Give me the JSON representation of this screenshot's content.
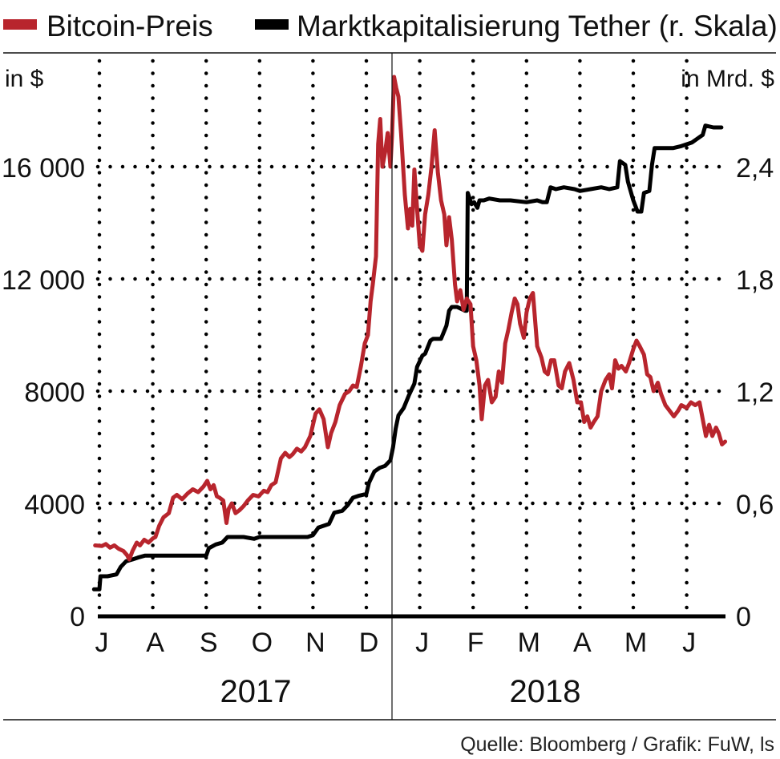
{
  "legend": [
    {
      "label": "Bitcoin-Preis",
      "color": "#b8252d"
    },
    {
      "label": "Marktkapitalisierung Tether (r. Skala)",
      "color": "#000000"
    }
  ],
  "left_unit": "in $",
  "right_unit": "in Mrd. $",
  "source": "Quelle: Bloomberg / Grafik: FuW, ls",
  "chart_data": {
    "type": "line",
    "title": "",
    "x_unit": "months since 1 Jul 2017",
    "xlim": [
      0,
      12
    ],
    "month_ticks": [
      {
        "label": "J",
        "x": 0
      },
      {
        "label": "A",
        "x": 1
      },
      {
        "label": "S",
        "x": 2
      },
      {
        "label": "O",
        "x": 3
      },
      {
        "label": "N",
        "x": 4
      },
      {
        "label": "D",
        "x": 5
      },
      {
        "label": "J",
        "x": 6
      },
      {
        "label": "F",
        "x": 7
      },
      {
        "label": "M",
        "x": 8
      },
      {
        "label": "A",
        "x": 9
      },
      {
        "label": "M",
        "x": 10
      },
      {
        "label": "J",
        "x": 11
      }
    ],
    "years": [
      {
        "label": "2017",
        "from": 0,
        "to": 5.5
      },
      {
        "label": "2018",
        "from": 5.5,
        "to": 12
      }
    ],
    "year_divider": 5.5,
    "left_axis": {
      "ylim": [
        0,
        20000
      ],
      "ticks": [
        0,
        4000,
        8000,
        12000,
        16000
      ],
      "tick_labels": [
        "0",
        "4000",
        "8000",
        "12 000",
        "16 000"
      ]
    },
    "right_axis": {
      "ylim": [
        0,
        3.0
      ],
      "ticks": [
        0,
        0.6,
        1.2,
        1.8,
        2.4
      ],
      "tick_labels": [
        "0",
        "0,6",
        "1,2",
        "1,8",
        "2,4"
      ]
    },
    "grid": true,
    "legend_position": "top",
    "series": [
      {
        "name": "Bitcoin-Preis",
        "axis": "left",
        "color": "#b8252d",
        "points": [
          [
            -0.08,
            2500
          ],
          [
            0.05,
            2480
          ],
          [
            0.12,
            2550
          ],
          [
            0.2,
            2420
          ],
          [
            0.28,
            2500
          ],
          [
            0.36,
            2380
          ],
          [
            0.45,
            2300
          ],
          [
            0.52,
            2150
          ],
          [
            0.56,
            2000
          ],
          [
            0.62,
            2300
          ],
          [
            0.7,
            2600
          ],
          [
            0.76,
            2500
          ],
          [
            0.84,
            2700
          ],
          [
            0.92,
            2600
          ],
          [
            1.0,
            2750
          ],
          [
            1.05,
            2800
          ],
          [
            1.12,
            3200
          ],
          [
            1.2,
            3500
          ],
          [
            1.3,
            3650
          ],
          [
            1.38,
            4200
          ],
          [
            1.45,
            4300
          ],
          [
            1.55,
            4150
          ],
          [
            1.65,
            4350
          ],
          [
            1.75,
            4500
          ],
          [
            1.85,
            4400
          ],
          [
            1.95,
            4600
          ],
          [
            2.02,
            4800
          ],
          [
            2.08,
            4500
          ],
          [
            2.14,
            4650
          ],
          [
            2.2,
            4250
          ],
          [
            2.25,
            4200
          ],
          [
            2.32,
            4100
          ],
          [
            2.38,
            3300
          ],
          [
            2.42,
            3800
          ],
          [
            2.48,
            4000
          ],
          [
            2.55,
            3650
          ],
          [
            2.62,
            3750
          ],
          [
            2.7,
            3900
          ],
          [
            2.78,
            4100
          ],
          [
            2.88,
            4300
          ],
          [
            2.98,
            4250
          ],
          [
            3.08,
            4450
          ],
          [
            3.15,
            4400
          ],
          [
            3.22,
            4650
          ],
          [
            3.3,
            4750
          ],
          [
            3.4,
            5600
          ],
          [
            3.48,
            5800
          ],
          [
            3.56,
            5650
          ],
          [
            3.62,
            5750
          ],
          [
            3.7,
            5950
          ],
          [
            3.78,
            5850
          ],
          [
            3.85,
            6000
          ],
          [
            3.95,
            6400
          ],
          [
            4.05,
            7200
          ],
          [
            4.12,
            7350
          ],
          [
            4.2,
            7000
          ],
          [
            4.28,
            6000
          ],
          [
            4.34,
            6500
          ],
          [
            4.42,
            6900
          ],
          [
            4.5,
            7500
          ],
          [
            4.6,
            7900
          ],
          [
            4.68,
            8000
          ],
          [
            4.75,
            8200
          ],
          [
            4.82,
            8150
          ],
          [
            4.9,
            8900
          ],
          [
            4.97,
            9700
          ],
          [
            5.03,
            10000
          ],
          [
            5.08,
            11200
          ],
          [
            5.12,
            11800
          ],
          [
            5.18,
            12800
          ],
          [
            5.22,
            16800
          ],
          [
            5.26,
            17700
          ],
          [
            5.3,
            16000
          ],
          [
            5.35,
            16500
          ],
          [
            5.4,
            17200
          ],
          [
            5.45,
            16000
          ],
          [
            5.48,
            17100
          ],
          [
            5.52,
            19200
          ],
          [
            5.56,
            18800
          ],
          [
            5.6,
            18500
          ],
          [
            5.65,
            17200
          ],
          [
            5.72,
            15000
          ],
          [
            5.78,
            13800
          ],
          [
            5.82,
            14500
          ],
          [
            5.86,
            13900
          ],
          [
            5.9,
            15900
          ],
          [
            5.95,
            14500
          ],
          [
            6.0,
            13200
          ],
          [
            6.05,
            13000
          ],
          [
            6.1,
            14300
          ],
          [
            6.16,
            15000
          ],
          [
            6.22,
            16000
          ],
          [
            6.28,
            17300
          ],
          [
            6.34,
            15800
          ],
          [
            6.4,
            14800
          ],
          [
            6.46,
            14300
          ],
          [
            6.5,
            13200
          ],
          [
            6.55,
            14200
          ],
          [
            6.6,
            13400
          ],
          [
            6.66,
            11800
          ],
          [
            6.7,
            11200
          ],
          [
            6.76,
            11600
          ],
          [
            6.82,
            10900
          ],
          [
            6.88,
            11300
          ],
          [
            6.95,
            11100
          ],
          [
            7.0,
            9600
          ],
          [
            7.06,
            9100
          ],
          [
            7.12,
            8200
          ],
          [
            7.16,
            7000
          ],
          [
            7.22,
            8200
          ],
          [
            7.28,
            8400
          ],
          [
            7.35,
            7600
          ],
          [
            7.42,
            7800
          ],
          [
            7.48,
            8700
          ],
          [
            7.54,
            8300
          ],
          [
            7.6,
            9700
          ],
          [
            7.66,
            10200
          ],
          [
            7.72,
            10800
          ],
          [
            7.78,
            11300
          ],
          [
            7.83,
            11100
          ],
          [
            7.88,
            10400
          ],
          [
            7.95,
            9900
          ],
          [
            8.0,
            10800
          ],
          [
            8.06,
            11300
          ],
          [
            8.12,
            11500
          ],
          [
            8.2,
            9600
          ],
          [
            8.28,
            9200
          ],
          [
            8.34,
            8700
          ],
          [
            8.4,
            8600
          ],
          [
            8.46,
            9100
          ],
          [
            8.52,
            9100
          ],
          [
            8.6,
            8200
          ],
          [
            8.66,
            8100
          ],
          [
            8.72,
            8700
          ],
          [
            8.8,
            9000
          ],
          [
            8.88,
            8400
          ],
          [
            8.95,
            7600
          ],
          [
            9.02,
            7600
          ],
          [
            9.08,
            6900
          ],
          [
            9.14,
            7100
          ],
          [
            9.2,
            6700
          ],
          [
            9.26,
            6900
          ],
          [
            9.33,
            7100
          ],
          [
            9.4,
            8000
          ],
          [
            9.48,
            8400
          ],
          [
            9.55,
            8600
          ],
          [
            9.6,
            8100
          ],
          [
            9.66,
            9100
          ],
          [
            9.72,
            8800
          ],
          [
            9.78,
            8900
          ],
          [
            9.86,
            8700
          ],
          [
            9.92,
            9000
          ],
          [
            10.0,
            9500
          ],
          [
            10.06,
            9800
          ],
          [
            10.12,
            9600
          ],
          [
            10.2,
            9300
          ],
          [
            10.26,
            8600
          ],
          [
            10.32,
            8500
          ],
          [
            10.38,
            8000
          ],
          [
            10.46,
            8300
          ],
          [
            10.52,
            7900
          ],
          [
            10.6,
            7500
          ],
          [
            10.68,
            7300
          ],
          [
            10.76,
            7100
          ],
          [
            10.84,
            7300
          ],
          [
            10.9,
            7500
          ],
          [
            11.0,
            7400
          ],
          [
            11.08,
            7600
          ],
          [
            11.16,
            7500
          ],
          [
            11.24,
            7600
          ],
          [
            11.3,
            7000
          ],
          [
            11.36,
            6400
          ],
          [
            11.42,
            6800
          ],
          [
            11.48,
            6400
          ],
          [
            11.55,
            6700
          ],
          [
            11.6,
            6500
          ],
          [
            11.66,
            6100
          ],
          [
            11.72,
            6200
          ]
        ]
      },
      {
        "name": "Marktkapitalisierung Tether",
        "axis": "right",
        "color": "#000000",
        "points": [
          [
            -0.1,
            0.14
          ],
          [
            0.0,
            0.14
          ],
          [
            0.02,
            0.21
          ],
          [
            0.15,
            0.21
          ],
          [
            0.32,
            0.22
          ],
          [
            0.4,
            0.26
          ],
          [
            0.5,
            0.29
          ],
          [
            0.62,
            0.3
          ],
          [
            0.72,
            0.31
          ],
          [
            0.85,
            0.32
          ],
          [
            1.0,
            0.32
          ],
          [
            1.5,
            0.32
          ],
          [
            2.0,
            0.32
          ],
          [
            2.05,
            0.36
          ],
          [
            2.18,
            0.38
          ],
          [
            2.3,
            0.39
          ],
          [
            2.4,
            0.42
          ],
          [
            2.5,
            0.42
          ],
          [
            2.7,
            0.42
          ],
          [
            2.9,
            0.41
          ],
          [
            3.0,
            0.42
          ],
          [
            3.5,
            0.42
          ],
          [
            3.9,
            0.42
          ],
          [
            4.0,
            0.43
          ],
          [
            4.1,
            0.47
          ],
          [
            4.3,
            0.49
          ],
          [
            4.4,
            0.55
          ],
          [
            4.55,
            0.56
          ],
          [
            4.65,
            0.59
          ],
          [
            4.75,
            0.63
          ],
          [
            4.85,
            0.64
          ],
          [
            5.0,
            0.65
          ],
          [
            5.05,
            0.71
          ],
          [
            5.15,
            0.77
          ],
          [
            5.25,
            0.79
          ],
          [
            5.35,
            0.8
          ],
          [
            5.45,
            0.83
          ],
          [
            5.5,
            0.9
          ],
          [
            5.55,
            1.0
          ],
          [
            5.6,
            1.07
          ],
          [
            5.7,
            1.11
          ],
          [
            5.8,
            1.18
          ],
          [
            5.9,
            1.24
          ],
          [
            5.95,
            1.33
          ],
          [
            6.05,
            1.39
          ],
          [
            6.1,
            1.4
          ],
          [
            6.2,
            1.47
          ],
          [
            6.25,
            1.48
          ],
          [
            6.4,
            1.48
          ],
          [
            6.5,
            1.55
          ],
          [
            6.55,
            1.63
          ],
          [
            6.6,
            1.65
          ],
          [
            6.7,
            1.65
          ],
          [
            6.85,
            1.63
          ],
          [
            6.88,
            1.63
          ],
          [
            6.9,
            2.26
          ],
          [
            6.97,
            2.2
          ],
          [
            7.02,
            2.21
          ],
          [
            7.08,
            2.18
          ],
          [
            7.12,
            2.22
          ],
          [
            7.2,
            2.22
          ],
          [
            7.3,
            2.23
          ],
          [
            7.5,
            2.22
          ],
          [
            7.7,
            2.22
          ],
          [
            8.0,
            2.21
          ],
          [
            8.2,
            2.22
          ],
          [
            8.3,
            2.21
          ],
          [
            8.38,
            2.21
          ],
          [
            8.45,
            2.29
          ],
          [
            8.55,
            2.28
          ],
          [
            8.7,
            2.29
          ],
          [
            8.9,
            2.28
          ],
          [
            9.0,
            2.27
          ],
          [
            9.2,
            2.28
          ],
          [
            9.4,
            2.29
          ],
          [
            9.55,
            2.28
          ],
          [
            9.7,
            2.29
          ],
          [
            9.75,
            2.43
          ],
          [
            9.85,
            2.41
          ],
          [
            9.9,
            2.32
          ],
          [
            10.0,
            2.22
          ],
          [
            10.08,
            2.16
          ],
          [
            10.15,
            2.16
          ],
          [
            10.2,
            2.26
          ],
          [
            10.3,
            2.27
          ],
          [
            10.35,
            2.41
          ],
          [
            10.4,
            2.5
          ],
          [
            10.6,
            2.5
          ],
          [
            10.75,
            2.5
          ],
          [
            10.9,
            2.51
          ],
          [
            11.0,
            2.52
          ],
          [
            11.1,
            2.53
          ],
          [
            11.2,
            2.55
          ],
          [
            11.3,
            2.57
          ],
          [
            11.35,
            2.62
          ],
          [
            11.5,
            2.61
          ],
          [
            11.65,
            2.61
          ]
        ]
      }
    ]
  }
}
